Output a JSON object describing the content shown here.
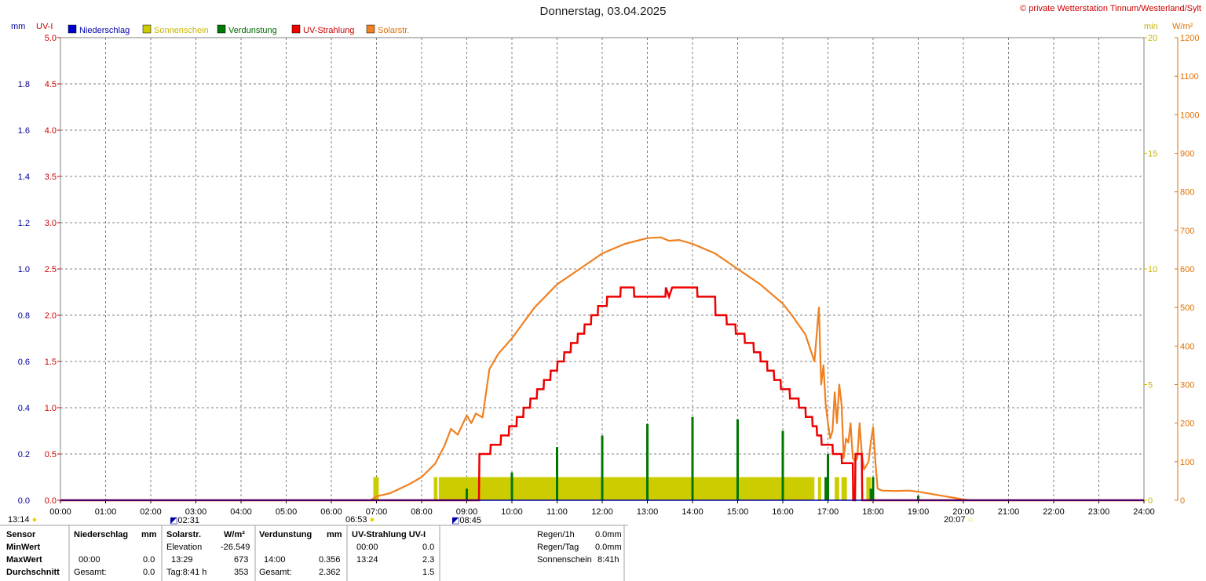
{
  "title": "Donnerstag, 03.04.2025",
  "copyright": "© private Wetterstation Tinnum/Westerland/Sylt",
  "colors": {
    "niederschlag": "#0000cc",
    "sonnenschein": "#cccc00",
    "verdunstung": "#007700",
    "uv": "#ee0000",
    "solar": "#f08020",
    "grid": "#808080",
    "axis_mm": "#000099",
    "axis_uv": "#cc0000",
    "axis_min": "#c8b400",
    "axis_wm2": "#e07000"
  },
  "chart_data": {
    "type": "line",
    "title": "Donnerstag, 03.04.2025",
    "x_ticks": [
      "00:00",
      "01:00",
      "02:00",
      "03:00",
      "04:00",
      "05:00",
      "06:00",
      "07:00",
      "08:00",
      "09:00",
      "10:00",
      "11:00",
      "12:00",
      "13:00",
      "14:00",
      "15:00",
      "16:00",
      "17:00",
      "18:00",
      "19:00",
      "20:00",
      "21:00",
      "22:00",
      "23:00",
      "24:00"
    ],
    "axes": {
      "mm": {
        "label": "mm",
        "ticks": [
          "0.0",
          "0.2",
          "0.4",
          "0.6",
          "0.8",
          "1.0",
          "1.2",
          "1.4",
          "1.6",
          "1.8"
        ],
        "range": [
          0,
          2.0
        ]
      },
      "uv": {
        "label": "UV-I",
        "ticks": [
          "0.0",
          "0.5",
          "1.0",
          "1.5",
          "2.0",
          "2.5",
          "3.0",
          "3.5",
          "4.0",
          "4.5",
          "5.0"
        ],
        "range": [
          0,
          5.0
        ]
      },
      "min": {
        "label": "min",
        "ticks": [
          "0",
          "5",
          "10",
          "15",
          "20"
        ],
        "range": [
          0,
          20
        ]
      },
      "wm2": {
        "label": "W/m²",
        "ticks": [
          "0",
          "100",
          "200",
          "300",
          "400",
          "500",
          "600",
          "700",
          "800",
          "900",
          "1000",
          "1100",
          "1200"
        ],
        "range": [
          0,
          1200
        ]
      }
    },
    "legend": [
      "Niederschlag",
      "Sonnenschein",
      "Verdunstung",
      "UV-Strahlung",
      "Solarstr."
    ],
    "series": [
      {
        "name": "Solarstr.",
        "axis": "wm2",
        "x": [
          6.87,
          7.0,
          7.3,
          7.7,
          8.0,
          8.3,
          8.5,
          8.65,
          8.8,
          9.0,
          9.1,
          9.2,
          9.35,
          9.5,
          9.7,
          10.0,
          10.5,
          11.0,
          11.5,
          12.0,
          12.5,
          13.0,
          13.3,
          13.48,
          13.7,
          14.0,
          14.5,
          15.0,
          15.5,
          16.0,
          16.2,
          16.5,
          16.7,
          16.8,
          16.85,
          16.9,
          16.95,
          17.0,
          17.05,
          17.1,
          17.15,
          17.2,
          17.25,
          17.3,
          17.35,
          17.4,
          17.45,
          17.5,
          17.55,
          17.6,
          17.65,
          17.7,
          17.75,
          17.8,
          17.85,
          17.9,
          17.95,
          18.0,
          18.05,
          18.1,
          18.2,
          18.5,
          18.8,
          19.0,
          19.2,
          19.5,
          19.8,
          20.12
        ],
        "y": [
          0,
          10,
          18,
          40,
          60,
          95,
          140,
          185,
          170,
          220,
          200,
          225,
          215,
          340,
          380,
          420,
          500,
          560,
          600,
          640,
          665,
          680,
          682,
          673,
          675,
          665,
          640,
          600,
          560,
          510,
          480,
          430,
          360,
          500,
          300,
          350,
          250,
          200,
          160,
          180,
          280,
          200,
          300,
          250,
          110,
          160,
          150,
          200,
          110,
          100,
          110,
          200,
          120,
          80,
          90,
          100,
          150,
          190,
          100,
          30,
          25,
          24,
          25,
          22,
          18,
          12,
          6,
          0
        ]
      },
      {
        "name": "UV-Strahlung",
        "axis": "uv",
        "x": [
          0,
          9.27,
          9.28,
          9.52,
          9.53,
          9.75,
          9.76,
          9.93,
          9.94,
          10.1,
          10.11,
          10.25,
          10.26,
          10.4,
          10.41,
          10.55,
          10.56,
          10.7,
          10.71,
          10.85,
          10.86,
          11.0,
          11.01,
          11.15,
          11.16,
          11.3,
          11.31,
          11.45,
          11.46,
          11.6,
          11.61,
          11.75,
          11.76,
          11.9,
          11.91,
          12.1,
          12.11,
          12.4,
          12.41,
          12.7,
          12.71,
          13.4,
          13.41,
          13.48,
          13.55,
          13.56,
          14.1,
          14.11,
          14.5,
          14.51,
          14.75,
          14.76,
          14.95,
          14.96,
          15.15,
          15.16,
          15.35,
          15.36,
          15.5,
          15.51,
          15.65,
          15.66,
          15.8,
          15.81,
          15.95,
          15.96,
          16.15,
          16.16,
          16.35,
          16.36,
          16.5,
          16.51,
          16.65,
          16.66,
          16.75,
          16.76,
          16.85,
          16.86,
          17.1,
          17.11,
          17.3,
          17.31,
          17.55,
          17.56,
          17.6,
          17.61,
          17.75,
          17.76,
          24
        ],
        "y": [
          0,
          0,
          0.5,
          0.5,
          0.6,
          0.6,
          0.7,
          0.7,
          0.8,
          0.8,
          0.9,
          0.9,
          1.0,
          1.0,
          1.1,
          1.1,
          1.2,
          1.2,
          1.3,
          1.3,
          1.4,
          1.4,
          1.5,
          1.5,
          1.6,
          1.6,
          1.7,
          1.7,
          1.8,
          1.8,
          1.9,
          1.9,
          2.0,
          2.0,
          2.1,
          2.1,
          2.2,
          2.2,
          2.3,
          2.3,
          2.2,
          2.2,
          2.3,
          2.2,
          2.3,
          2.3,
          2.3,
          2.2,
          2.2,
          2.0,
          2.0,
          1.9,
          1.9,
          1.8,
          1.8,
          1.7,
          1.7,
          1.6,
          1.6,
          1.5,
          1.5,
          1.4,
          1.4,
          1.3,
          1.3,
          1.2,
          1.2,
          1.1,
          1.1,
          1.0,
          1.0,
          0.9,
          0.9,
          0.8,
          0.8,
          0.7,
          0.7,
          0.6,
          0.6,
          0.5,
          0.5,
          0.4,
          0.4,
          0.0,
          0.0,
          0.5,
          0.5,
          0.0,
          0.0
        ]
      },
      {
        "name": "Sonnenschein",
        "axis": "min",
        "blocks": [
          [
            6.93,
            7.05
          ],
          [
            8.27,
            8.35
          ],
          [
            8.38,
            16.7
          ],
          [
            16.78,
            16.85
          ],
          [
            17.15,
            17.25
          ],
          [
            17.3,
            17.42
          ],
          [
            17.85,
            17.95
          ]
        ],
        "value": 1.0
      },
      {
        "name": "Verdunstung",
        "axis": "mm",
        "x": [
          9.0,
          10.0,
          11.0,
          12.0,
          13.0,
          14.0,
          15.0,
          16.0,
          16.95,
          17.0,
          17.95,
          18.0,
          19.0
        ],
        "y": [
          0.05,
          0.12,
          0.23,
          0.28,
          0.33,
          0.36,
          0.35,
          0.3,
          0.1,
          0.2,
          0.05,
          0.1,
          0.02
        ]
      },
      {
        "name": "Niederschlag",
        "axis": "mm",
        "x": [],
        "y": []
      }
    ]
  },
  "time_markers": {
    "left": "13:14",
    "moonset": "02:31",
    "sunrise": "06:53",
    "moonrise": "08:45",
    "sunset": "20:07"
  },
  "stats": {
    "headers": {
      "sensor": "Sensor",
      "niederschlag": "Niederschlag",
      "niederschlag_unit": "mm",
      "solar": "Solarstr.",
      "solar_unit": "W/m²",
      "verdunstung": "Verdunstung",
      "verdunstung_unit": "mm",
      "uv": "UV-Strahlung UV-I"
    },
    "rows": {
      "min": "MinWert",
      "max": "MaxWert",
      "avg": "Durchschnitt"
    },
    "solar": {
      "elev_label": "Elevation",
      "elev_value": "-26.549",
      "max_time": "13:29",
      "max_value": "673",
      "avg_label": "Tag:8:41 h",
      "avg_value": "353"
    },
    "niederschlag": {
      "max_time": "00:00",
      "max_value": "0.0",
      "avg_label": "Gesamt:",
      "avg_value": "0.0"
    },
    "verdunstung": {
      "max_time": "14:00",
      "max_value": "0.356",
      "avg_label": "Gesamt:",
      "avg_value": "2.362"
    },
    "uv": {
      "min_time": "00:00",
      "min_value": "0.0",
      "max_time": "13:24",
      "max_value": "2.3",
      "avg_value": "1.5"
    },
    "extra": {
      "regen1h_label": "Regen/1h",
      "regen1h_value": "0.0mm",
      "regentag_label": "Regen/Tag",
      "regentag_value": "0.0mm",
      "sonne_label": "Sonnenschein",
      "sonne_value": "8:41h"
    }
  }
}
